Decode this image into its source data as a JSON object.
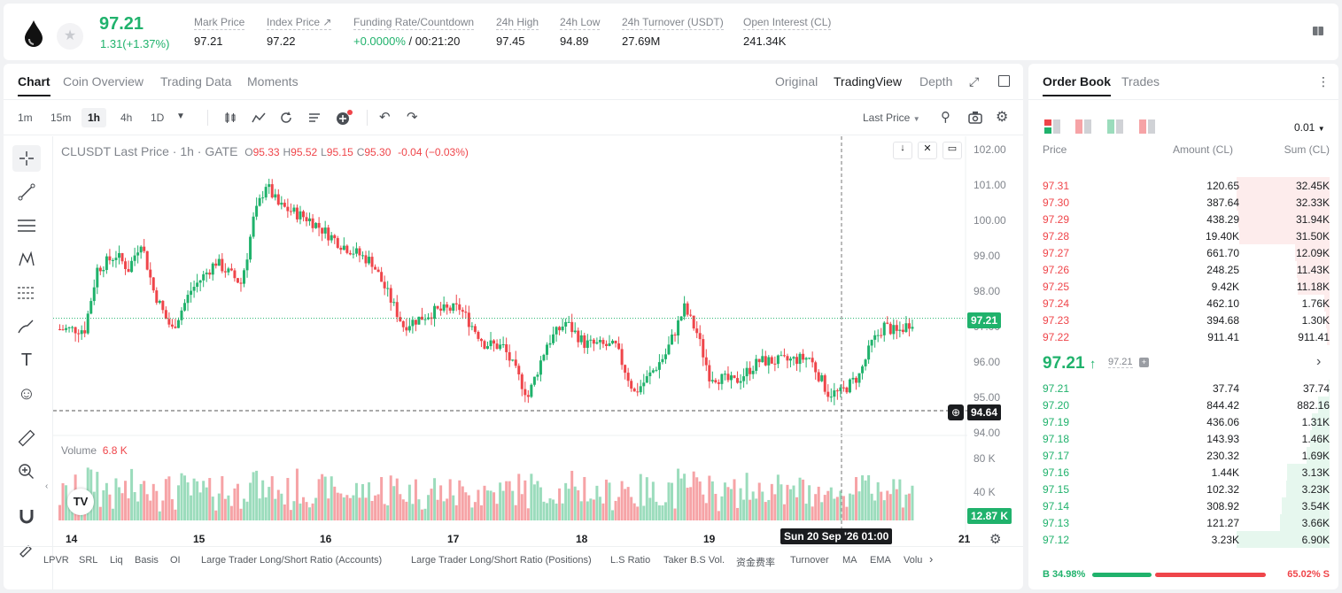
{
  "header": {
    "last_price": "97.21",
    "change": "1.31(+1.37%)",
    "stats": [
      {
        "label": "Mark Price",
        "value": "97.21"
      },
      {
        "label": "Index Price ↗",
        "value": "97.22"
      },
      {
        "label": "Funding Rate/Countdown",
        "value_green": "+0.0000%",
        "value": " / 00:21:20"
      },
      {
        "label": "24h High",
        "value": "97.45"
      },
      {
        "label": "24h Low",
        "value": "94.89"
      },
      {
        "label": "24h Turnover (USDT)",
        "value": "27.69M"
      },
      {
        "label": "Open Interest (CL)",
        "value": "241.34K"
      }
    ]
  },
  "chart_tabs": [
    "Chart",
    "Coin Overview",
    "Trading Data",
    "Moments"
  ],
  "chart_modes": [
    "Original",
    "TradingView",
    "Depth"
  ],
  "intervals": [
    "1m",
    "15m",
    "1h",
    "4h",
    "1D"
  ],
  "price_type": "Last Price",
  "legend": {
    "title": "CLUSDT Last Price · 1h · GATE",
    "o": "95.33",
    "h": "95.52",
    "l": "95.15",
    "c": "95.30",
    "chg": "-0.04 (−0.03%)"
  },
  "volume_legend": {
    "label": "Volume",
    "value": "6.8 K"
  },
  "price_axis": [
    "102.00",
    "101.00",
    "100.00",
    "99.00",
    "98.00",
    "97.00",
    "96.00",
    "95.00",
    "94.00"
  ],
  "volume_axis": [
    "80 K",
    "40 K"
  ],
  "last_price_tag": "97.21",
  "crosshair_price": "94.64",
  "volume_tag": "12.87 K",
  "crosshair_time": "Sun 20 Sep '26   01:00",
  "date_axis": [
    "14",
    "15",
    "16",
    "17",
    "18",
    "19",
    "21"
  ],
  "indicators": [
    "LPVR",
    "SRL",
    "Liq",
    "Basis",
    "OI",
    "Large Trader Long/Short Ratio (Accounts)",
    "Large Trader Long/Short Ratio (Positions)",
    "L.S Ratio",
    "Taker B.S Vol.",
    "资金费率",
    "Turnover",
    "MA",
    "EMA",
    "Volu"
  ],
  "orderbook": {
    "tabs": [
      "Order Book",
      "Trades"
    ],
    "precision": "0.01",
    "headers": {
      "price": "Price",
      "amount": "Amount (CL)",
      "sum": "Sum (CL)"
    },
    "asks": [
      {
        "price": "97.31",
        "amount": "120.65",
        "sum": "32.45K",
        "depth": 1.0
      },
      {
        "price": "97.30",
        "amount": "387.64",
        "sum": "32.33K",
        "depth": 0.996
      },
      {
        "price": "97.29",
        "amount": "438.29",
        "sum": "31.94K",
        "depth": 0.984
      },
      {
        "price": "97.28",
        "amount": "19.40K",
        "sum": "31.50K",
        "depth": 0.971
      },
      {
        "price": "97.27",
        "amount": "661.70",
        "sum": "12.09K",
        "depth": 0.373
      },
      {
        "price": "97.26",
        "amount": "248.25",
        "sum": "11.43K",
        "depth": 0.352
      },
      {
        "price": "97.25",
        "amount": "9.42K",
        "sum": "11.18K",
        "depth": 0.345
      },
      {
        "price": "97.24",
        "amount": "462.10",
        "sum": "1.76K",
        "depth": 0.054
      },
      {
        "price": "97.23",
        "amount": "394.68",
        "sum": "1.30K",
        "depth": 0.04
      },
      {
        "price": "97.22",
        "amount": "911.41",
        "sum": "911.41",
        "depth": 0.028
      }
    ],
    "mid_price": "97.21",
    "mark": "97.21",
    "bids": [
      {
        "price": "97.21",
        "amount": "37.74",
        "sum": "37.74",
        "depth": 0.005
      },
      {
        "price": "97.20",
        "amount": "844.42",
        "sum": "882.16",
        "depth": 0.128
      },
      {
        "price": "97.19",
        "amount": "436.06",
        "sum": "1.31K",
        "depth": 0.19
      },
      {
        "price": "97.18",
        "amount": "143.93",
        "sum": "1.46K",
        "depth": 0.21
      },
      {
        "price": "97.17",
        "amount": "230.32",
        "sum": "1.69K",
        "depth": 0.245
      },
      {
        "price": "97.16",
        "amount": "1.44K",
        "sum": "3.13K",
        "depth": 0.453
      },
      {
        "price": "97.15",
        "amount": "102.32",
        "sum": "3.23K",
        "depth": 0.468
      },
      {
        "price": "97.14",
        "amount": "308.92",
        "sum": "3.54K",
        "depth": 0.513
      },
      {
        "price": "97.13",
        "amount": "121.27",
        "sum": "3.66K",
        "depth": 0.53
      },
      {
        "price": "97.12",
        "amount": "3.23K",
        "sum": "6.90K",
        "depth": 1.0
      }
    ],
    "buy_ratio": "B 34.98%",
    "sell_ratio": "65.02% S",
    "buy_fraction": 0.3498
  },
  "colors": {
    "up": "#20b26c",
    "down": "#ef454a",
    "up_vol": "#9bdcbc",
    "down_vol": "#f6a3a6"
  }
}
